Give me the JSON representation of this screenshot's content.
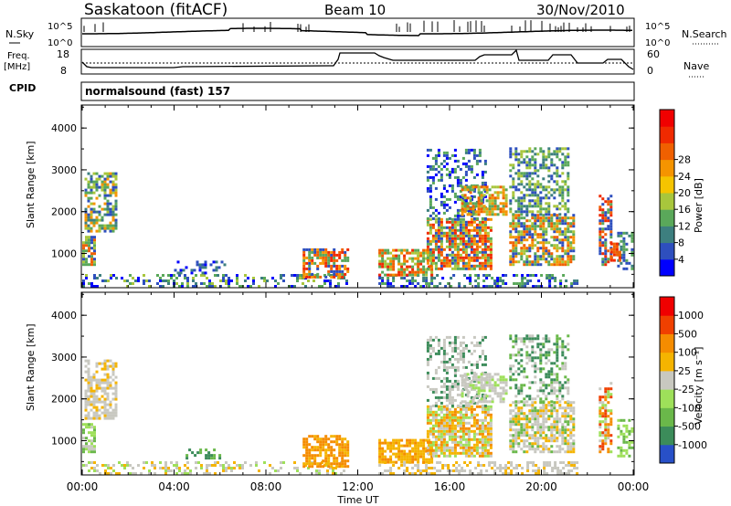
{
  "header": {
    "station": "Saskatoon (fitACF)",
    "beam": "Beam 10",
    "date": "30/Nov/2010"
  },
  "params": {
    "nsky_label": "N.Sky",
    "nsearch_label": "N.Search",
    "freq_label_1": "Freq.",
    "freq_label_2": "[MHz]",
    "nave_label": "Nave",
    "cpid_label": "CPID",
    "cpid_value": "normalsound (fast) 157",
    "noise_ticks": [
      "10^5",
      "10^0"
    ],
    "freq_ticks": [
      "18",
      "8"
    ],
    "nave_ticks": [
      "60",
      "0"
    ]
  },
  "chart_data": [
    {
      "type": "heatmap",
      "title": "",
      "xlabel": "Time UT",
      "ylabel": "Slant Range [km]",
      "xticks": [
        "00:00",
        "04:00",
        "08:00",
        "12:00",
        "16:00",
        "20:00",
        "00:00"
      ],
      "yticks": [
        "1000",
        "2000",
        "3000",
        "4000"
      ],
      "xlim_hours": [
        0,
        24
      ],
      "ylim_km": [
        180,
        4550
      ],
      "colorbar": {
        "label": "Power [dB]",
        "ticks": [
          "4",
          "8",
          "12",
          "16",
          "20",
          "24",
          "28"
        ],
        "colors": [
          "#0000ff",
          "#2e4fbe",
          "#3d7f7f",
          "#5aa85a",
          "#a8c63c",
          "#f5c400",
          "#f59400",
          "#f06000",
          "#f02a00",
          "#f00000"
        ]
      },
      "patches": [
        {
          "t0": 0.0,
          "t1": 0.5,
          "r0": 700,
          "r1": 1400,
          "colors": [
            "#f06000",
            "#5aa85a",
            "#2e4fbe",
            "#a8c63c"
          ],
          "density": 0.8
        },
        {
          "t0": 0.1,
          "t1": 1.5,
          "r0": 1500,
          "r1": 2900,
          "colors": [
            "#5aa85a",
            "#3d7f7f",
            "#2e4fbe",
            "#a8c63c",
            "#f59400"
          ],
          "density": 0.6
        },
        {
          "t0": 0.0,
          "t1": 11.5,
          "r0": 180,
          "r1": 450,
          "colors": [
            "#2e4fbe",
            "#3d7f7f",
            "#5aa85a",
            "#a8c63c",
            "#0000ff"
          ],
          "density": 0.35
        },
        {
          "t0": 4.0,
          "t1": 6.5,
          "r0": 500,
          "r1": 800,
          "colors": [
            "#2e4fbe",
            "#0000ff",
            "#3d7f7f"
          ],
          "density": 0.25
        },
        {
          "t0": 9.6,
          "t1": 11.6,
          "r0": 400,
          "r1": 1100,
          "colors": [
            "#f02a00",
            "#f06000",
            "#f59400",
            "#5aa85a",
            "#2e4fbe"
          ],
          "density": 0.7
        },
        {
          "t0": 12.9,
          "t1": 21.5,
          "r0": 180,
          "r1": 450,
          "colors": [
            "#2e4fbe",
            "#3d7f7f",
            "#5aa85a",
            "#0000ff"
          ],
          "density": 0.4
        },
        {
          "t0": 12.9,
          "t1": 15.2,
          "r0": 450,
          "r1": 1100,
          "colors": [
            "#f02a00",
            "#f06000",
            "#f59400",
            "#a8c63c",
            "#5aa85a"
          ],
          "density": 0.75
        },
        {
          "t0": 15.0,
          "t1": 17.8,
          "r0": 600,
          "r1": 1800,
          "colors": [
            "#f06000",
            "#f59400",
            "#a8c63c",
            "#5aa85a",
            "#2e4fbe",
            "#f02a00"
          ],
          "density": 0.8
        },
        {
          "t0": 15.0,
          "t1": 17.6,
          "r0": 1800,
          "r1": 3500,
          "colors": [
            "#2e4fbe",
            "#3d7f7f",
            "#5aa85a",
            "#0000ff"
          ],
          "density": 0.35
        },
        {
          "t0": 16.5,
          "t1": 18.5,
          "r0": 1900,
          "r1": 2600,
          "colors": [
            "#f59400",
            "#a8c63c",
            "#5aa85a",
            "#f06000"
          ],
          "density": 0.65
        },
        {
          "t0": 18.6,
          "t1": 21.4,
          "r0": 700,
          "r1": 1900,
          "colors": [
            "#f06000",
            "#f59400",
            "#a8c63c",
            "#5aa85a",
            "#2e4fbe"
          ],
          "density": 0.7
        },
        {
          "t0": 18.6,
          "t1": 21.2,
          "r0": 1900,
          "r1": 3500,
          "colors": [
            "#5aa85a",
            "#3d7f7f",
            "#2e4fbe",
            "#a8c63c"
          ],
          "density": 0.5
        },
        {
          "t0": 22.5,
          "t1": 23.0,
          "r0": 700,
          "r1": 2400,
          "colors": [
            "#f02a00",
            "#f06000",
            "#5aa85a",
            "#2e4fbe"
          ],
          "density": 0.6
        },
        {
          "t0": 23.3,
          "t1": 23.9,
          "r0": 600,
          "r1": 1500,
          "colors": [
            "#2e4fbe",
            "#3d7f7f",
            "#5aa85a"
          ],
          "density": 0.4
        },
        {
          "t0": 23.0,
          "t1": 23.4,
          "r0": 800,
          "r1": 1200,
          "colors": [
            "#f02a00",
            "#f06000"
          ],
          "density": 0.8
        }
      ]
    },
    {
      "type": "heatmap",
      "title": "",
      "xlabel": "Time UT",
      "ylabel": "Slant Range [km]",
      "xticks": [
        "00:00",
        "04:00",
        "08:00",
        "12:00",
        "16:00",
        "20:00",
        "00:00"
      ],
      "yticks": [
        "1000",
        "2000",
        "3000",
        "4000"
      ],
      "xlim_hours": [
        0,
        24
      ],
      "ylim_km": [
        180,
        4550
      ],
      "colorbar": {
        "label": "Velocity [m s⁻¹]",
        "ticks": [
          "1000",
          "500",
          "100",
          "25",
          "-25",
          "-100",
          "-500",
          "-1000"
        ],
        "colors": [
          "#2850c8",
          "#3c8c5a",
          "#6ab84a",
          "#9ee05a",
          "#c8c8c0",
          "#f5b400",
          "#f58c00",
          "#f04000",
          "#f00000"
        ]
      },
      "patches": [
        {
          "t0": 0.0,
          "t1": 0.5,
          "r0": 700,
          "r1": 1400,
          "colors": [
            "#6ab84a",
            "#c8c8c0",
            "#9ee05a"
          ],
          "density": 0.7
        },
        {
          "t0": 0.1,
          "t1": 1.5,
          "r0": 1500,
          "r1": 2900,
          "colors": [
            "#c8c8c0",
            "#c8c8c0",
            "#f5b400"
          ],
          "density": 0.6
        },
        {
          "t0": 0.0,
          "t1": 11.5,
          "r0": 180,
          "r1": 450,
          "colors": [
            "#c8c8c0",
            "#f5b400",
            "#9ee05a",
            "#c8c8c0"
          ],
          "density": 0.35
        },
        {
          "t0": 4.5,
          "t1": 6.0,
          "r0": 550,
          "r1": 750,
          "colors": [
            "#6ab84a",
            "#3c8c5a"
          ],
          "density": 0.35
        },
        {
          "t0": 9.6,
          "t1": 11.6,
          "r0": 350,
          "r1": 1100,
          "colors": [
            "#f58c00",
            "#f5b400",
            "#f58c00"
          ],
          "density": 0.75
        },
        {
          "t0": 12.9,
          "t1": 21.5,
          "r0": 180,
          "r1": 450,
          "colors": [
            "#c8c8c0",
            "#f5b400",
            "#c8c8c0"
          ],
          "density": 0.45
        },
        {
          "t0": 12.9,
          "t1": 15.2,
          "r0": 450,
          "r1": 1000,
          "colors": [
            "#f5b400",
            "#f58c00",
            "#f5b400"
          ],
          "density": 0.75
        },
        {
          "t0": 15.0,
          "t1": 17.8,
          "r0": 600,
          "r1": 1800,
          "colors": [
            "#f5b400",
            "#f58c00",
            "#9ee05a",
            "#c8c8c0"
          ],
          "density": 0.8
        },
        {
          "t0": 15.0,
          "t1": 17.6,
          "r0": 1800,
          "r1": 3500,
          "colors": [
            "#c8c8c0",
            "#c8c8c0",
            "#3c8c5a"
          ],
          "density": 0.4
        },
        {
          "t0": 16.5,
          "t1": 18.5,
          "r0": 1900,
          "r1": 2600,
          "colors": [
            "#c8c8c0",
            "#c8c8c0",
            "#9ee05a"
          ],
          "density": 0.6
        },
        {
          "t0": 18.6,
          "t1": 21.4,
          "r0": 700,
          "r1": 1900,
          "colors": [
            "#c8c8c0",
            "#c8c8c0",
            "#f5b400",
            "#6ab84a"
          ],
          "density": 0.7
        },
        {
          "t0": 18.6,
          "t1": 21.2,
          "r0": 1900,
          "r1": 3500,
          "colors": [
            "#c8c8c0",
            "#3c8c5a",
            "#6ab84a"
          ],
          "density": 0.45
        },
        {
          "t0": 22.5,
          "t1": 23.0,
          "r0": 700,
          "r1": 2400,
          "colors": [
            "#f04000",
            "#f58c00",
            "#c8c8c0",
            "#9ee05a"
          ],
          "density": 0.6
        },
        {
          "t0": 23.3,
          "t1": 23.9,
          "r0": 600,
          "r1": 1500,
          "colors": [
            "#6ab84a",
            "#9ee05a"
          ],
          "density": 0.5
        }
      ]
    }
  ]
}
